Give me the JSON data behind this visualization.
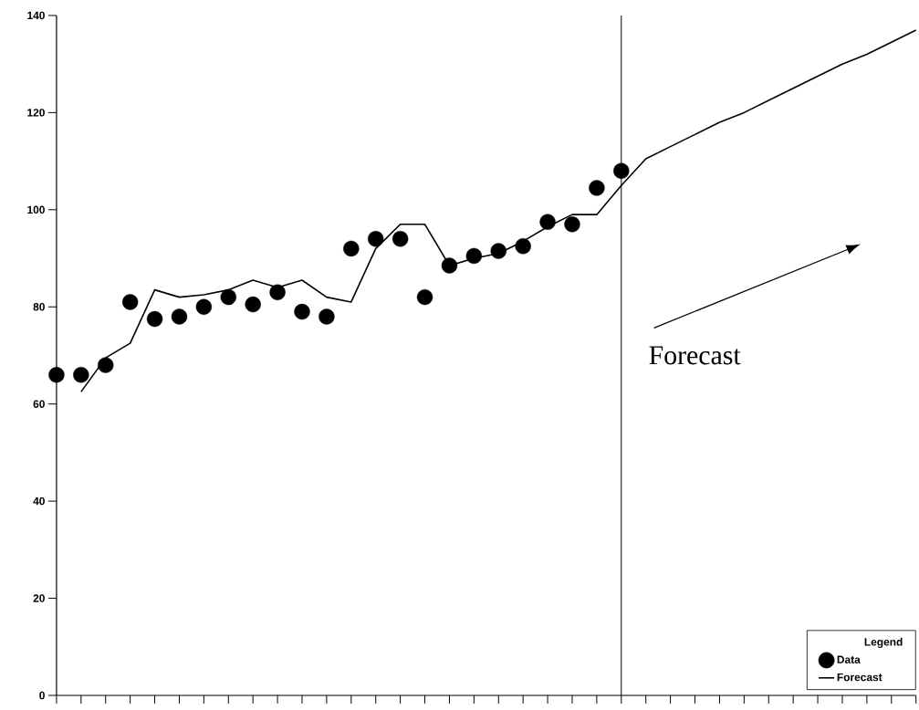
{
  "chart_data": {
    "type": "line",
    "categories": [
      null,
      null,
      null,
      null,
      null,
      null,
      null,
      null,
      null,
      null,
      null,
      null,
      null,
      null,
      null,
      null,
      null,
      null,
      null,
      null,
      null,
      null,
      null,
      null,
      null,
      null,
      null,
      null,
      null,
      null,
      null,
      null,
      null,
      null,
      null,
      null
    ],
    "ylim": [
      0,
      140
    ],
    "yticks": [
      0,
      20,
      40,
      60,
      80,
      100,
      120,
      140
    ],
    "grid": false,
    "legend": "bottom right",
    "legend_title": "Legend",
    "series": [
      {
        "name": "Data",
        "type": "scatter",
        "marker": "circle",
        "color": "#000000",
        "values": [
          66,
          66,
          68,
          81,
          77.5,
          78,
          80,
          82,
          80.5,
          83,
          79,
          78,
          92,
          94,
          94,
          82,
          88.5,
          90.5,
          91.5,
          92.5,
          97.5,
          97,
          104.5,
          108,
          null,
          null,
          null,
          null,
          null,
          null,
          null,
          null,
          null,
          null,
          null,
          null
        ]
      },
      {
        "name": "Forecast",
        "color": "#000000",
        "values": [
          null,
          62.5,
          69.5,
          72.5,
          83.5,
          82,
          82.5,
          83.5,
          85.5,
          84,
          85.5,
          82,
          81,
          92,
          97,
          97,
          88.5,
          90,
          91,
          93.5,
          96.5,
          99,
          99,
          105,
          110.5,
          113,
          115.5,
          118,
          120,
          122.5,
          125,
          127.5,
          130,
          132,
          134.5,
          137
        ]
      }
    ],
    "annotations": [
      "Forecast"
    ]
  }
}
